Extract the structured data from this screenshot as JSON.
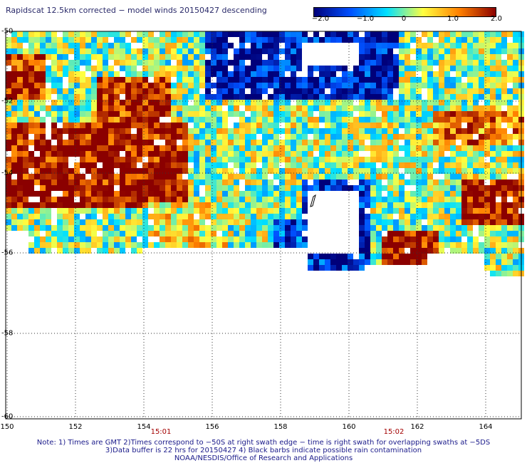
{
  "title": "Rapidscat 12.5km corrected − model winds 20150427 descending",
  "colorbar": {
    "ticks": [
      "−2.0",
      "−1.0",
      "0",
      "1.0",
      "2.0"
    ],
    "tick_values": [
      -2.0,
      -1.0,
      0,
      1.0,
      2.0
    ],
    "range": [
      -2.0,
      2.0
    ],
    "colors": [
      "#00007a",
      "#0050ff",
      "#00e0ff",
      "#ffff40",
      "#ff8000",
      "#8b0000"
    ]
  },
  "axes": {
    "lat_ticks": [
      "-50",
      "-52",
      "-54",
      "-56",
      "-58",
      "-60"
    ],
    "lat_values": [
      -50,
      -52,
      -54,
      -56,
      -58,
      -60
    ],
    "lon_ticks": [
      "150",
      "152",
      "154",
      "156",
      "158",
      "160",
      "162",
      "164"
    ],
    "lon_values": [
      150,
      152,
      154,
      156,
      158,
      160,
      162,
      164
    ],
    "lon_range": [
      150,
      165
    ],
    "lat_range": [
      -60,
      -50
    ]
  },
  "times": [
    {
      "label": "15:01",
      "lon": 154.6
    },
    {
      "label": "15:02",
      "lon": 161.4
    }
  ],
  "notes": [
    "Note: 1) Times are GMT 2)Times correspond to −50S at right swath edge − time is right swath for overlapping swaths at −5DS",
    "3)Data buffer is 22 hrs for 20150427 4) Black barbs indicate possible rain contamination",
    "NOAA/NESDIS/Office of Research and Applications"
  ]
}
